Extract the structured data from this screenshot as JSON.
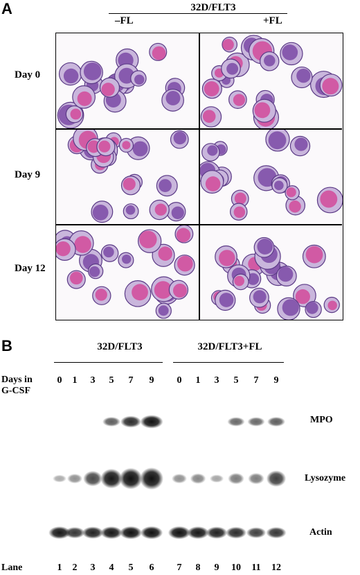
{
  "panel_a": {
    "letter": "A",
    "header": "32D/FLT3",
    "col_minus": "–FL",
    "col_plus": "+FL",
    "rows": [
      "Day 0",
      "Day 9",
      "Day 12"
    ]
  },
  "panel_b": {
    "letter": "B",
    "group1": "32D/FLT3",
    "group2": "32D/FLT3+FL",
    "days_label_1": "Days in",
    "days_label_2": "G-CSF",
    "days": [
      "0",
      "1",
      "3",
      "5",
      "7",
      "9",
      "0",
      "1",
      "3",
      "5",
      "7",
      "9"
    ],
    "blots": [
      "MPO",
      "Lysozyme",
      "Actin"
    ],
    "lane_label": "Lane",
    "lanes": [
      "1",
      "2",
      "3",
      "4",
      "5",
      "6",
      "7",
      "8",
      "9",
      "10",
      "11",
      "12"
    ]
  },
  "band_intensity": {
    "MPO": [
      0,
      0,
      0,
      0.5,
      0.75,
      0.95,
      0,
      0,
      0,
      0.45,
      0.45,
      0.5
    ],
    "Lysozyme": [
      0.12,
      0.25,
      0.6,
      0.85,
      0.95,
      1.0,
      0.25,
      0.3,
      0.15,
      0.35,
      0.35,
      0.65
    ],
    "Actin": [
      0.85,
      0.7,
      0.8,
      0.85,
      0.9,
      0.9,
      0.9,
      0.85,
      0.8,
      0.75,
      0.65,
      0.7
    ]
  },
  "colors": {
    "stain_purple": "#7b4aa6",
    "stain_magenta": "#d24a9a",
    "blot_dark": "#111111"
  }
}
